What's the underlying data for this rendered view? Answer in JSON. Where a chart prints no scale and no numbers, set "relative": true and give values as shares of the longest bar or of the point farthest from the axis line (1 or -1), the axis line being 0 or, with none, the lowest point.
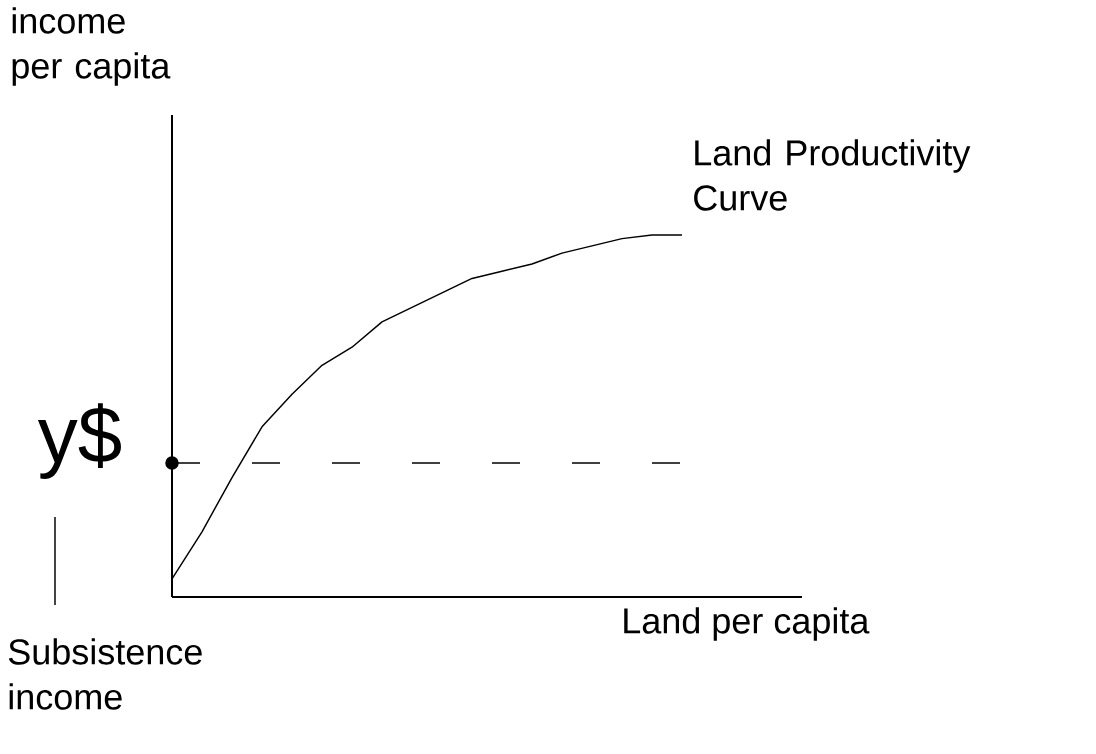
{
  "chart_data": {
    "type": "line",
    "relative": true,
    "xlabel": "Land per capita",
    "ylabel": "income per capita",
    "categories": [
      null,
      null,
      null,
      null,
      null,
      null,
      null,
      null,
      null,
      null,
      null,
      null,
      null,
      null,
      null,
      null,
      null,
      null,
      null,
      null,
      null,
      null
    ],
    "series": [
      {
        "name": "Land Productivity Curve",
        "color": "#000000",
        "values": [
          0.05,
          0.18,
          0.33,
          0.47,
          0.56,
          0.64,
          0.69,
          0.76,
          0.8,
          0.84,
          0.88,
          0.9,
          0.92,
          0.95,
          0.97,
          0.99,
          1.0,
          1.0,
          null,
          null,
          null,
          null
        ]
      },
      {
        "marker": "circle",
        "color": "#000000",
        "values": [
          0.37,
          null,
          null,
          null,
          null,
          null,
          null,
          null,
          null,
          null,
          null,
          null,
          null,
          null,
          null,
          null,
          null,
          null,
          null,
          null,
          null,
          null
        ]
      }
    ],
    "ref_lines": [
      {
        "axis": "y",
        "value": 0.37,
        "label": "y$",
        "line_style": "dashed"
      }
    ],
    "annotations": [
      "Subsistence income"
    ]
  }
}
